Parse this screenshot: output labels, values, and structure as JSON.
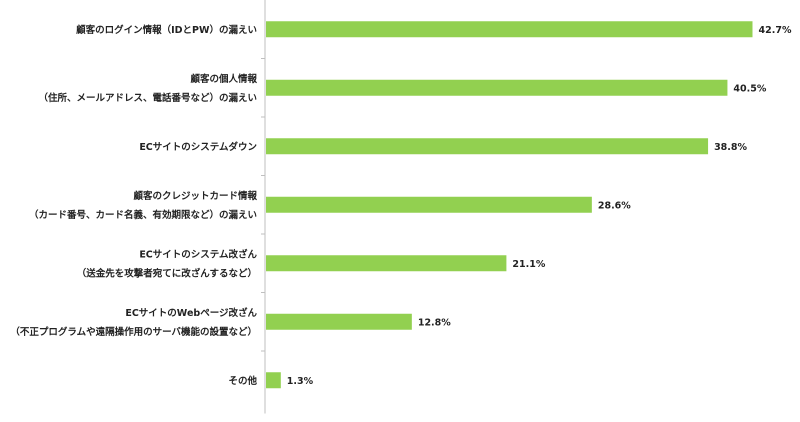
{
  "chart_data": {
    "type": "bar",
    "orientation": "horizontal",
    "categories": [
      [
        "顧客のログイン情報（IDとPW）の漏えい"
      ],
      [
        "顧客の個人情報",
        "（住所、メールアドレス、電話番号など）の漏えい"
      ],
      [
        "ECサイトのシステムダウン"
      ],
      [
        "顧客のクレジットカード情報",
        "（カード番号、カード名義、有効期限など）の漏えい"
      ],
      [
        "ECサイトのシステム改ざん",
        "（送金先を攻撃者宛てに改ざんするなど）"
      ],
      [
        "ECサイトのWebページ改ざん",
        "（不正プログラムや遠隔操作用のサーバ機能の設置など）"
      ],
      [
        "その他"
      ]
    ],
    "values": [
      42.7,
      40.5,
      38.8,
      28.6,
      21.1,
      12.8,
      1.3
    ],
    "value_labels": [
      "42.7%",
      "40.5%",
      "38.8%",
      "28.6%",
      "21.1%",
      "12.8%",
      "1.3%"
    ],
    "unit": "%",
    "xlim": [
      0,
      50
    ],
    "title": "",
    "xlabel": "",
    "ylabel": "",
    "grid": false,
    "legend": "none",
    "colors": {
      "bar": "#92d050",
      "axis": "#bfbfbf",
      "text": "#222222"
    }
  }
}
